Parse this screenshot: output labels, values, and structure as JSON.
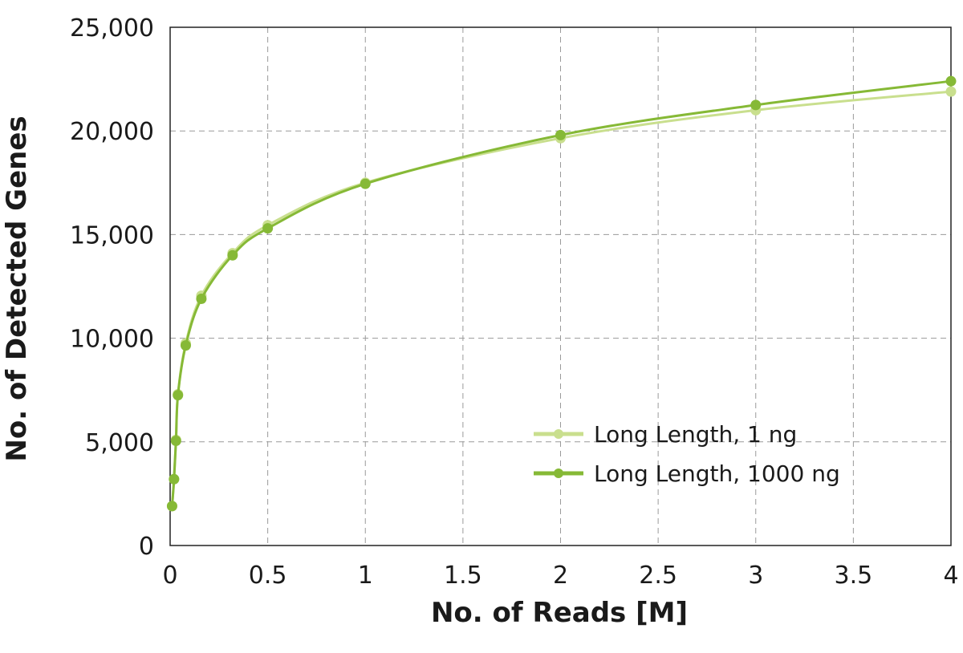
{
  "chart_data": {
    "type": "line",
    "title": "",
    "xlabel": "No. of Reads [M]",
    "ylabel": "No. of Detected Genes",
    "xlim": [
      0,
      4
    ],
    "ylim": [
      0,
      25000
    ],
    "grid": true,
    "legend_position": "bottom-right",
    "x_ticks": [
      0,
      0.5,
      1,
      1.5,
      2,
      2.5,
      3,
      3.5,
      4
    ],
    "x_tick_labels": [
      "0",
      "0.5",
      "1",
      "1.5",
      "2",
      "2.5",
      "3",
      "3.5",
      "4"
    ],
    "y_ticks": [
      0,
      5000,
      10000,
      15000,
      20000,
      25000
    ],
    "y_tick_labels": [
      "0",
      "5,000",
      "10,000",
      "15,000",
      "20,000",
      "25,000"
    ],
    "x": [
      0.01,
      0.02,
      0.03,
      0.04,
      0.08,
      0.16,
      0.32,
      0.5,
      1,
      2,
      3,
      4
    ],
    "series": [
      {
        "name": "Long Length, 1 ng",
        "color": "#c9df8e",
        "values": [
          1900,
          3200,
          5100,
          7300,
          9750,
          12050,
          14100,
          15450,
          17500,
          19650,
          21000,
          21900
        ]
      },
      {
        "name": "Long Length, 1000 ng",
        "color": "#86b936",
        "values": [
          1900,
          3200,
          5050,
          7250,
          9650,
          11900,
          14000,
          15300,
          17450,
          19800,
          21250,
          22400
        ]
      }
    ]
  }
}
